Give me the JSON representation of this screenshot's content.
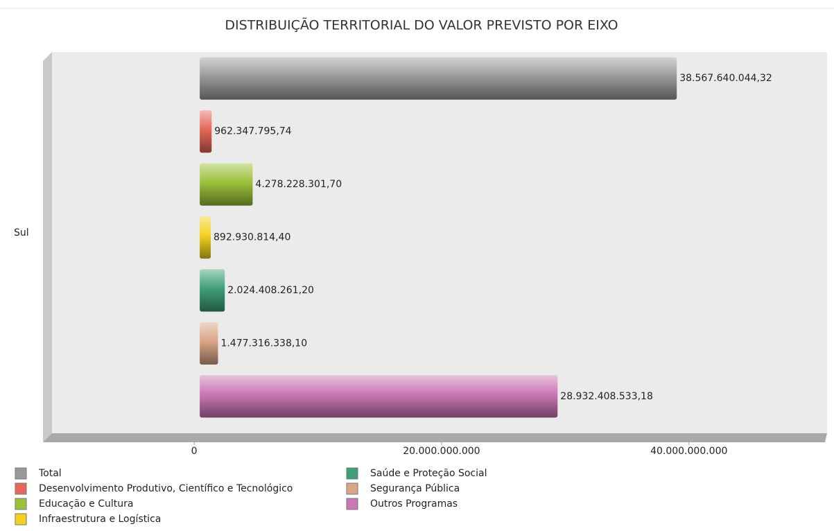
{
  "chart_data": {
    "type": "bar",
    "orientation": "horizontal",
    "title": "DISTRIBUIÇÃO TERRITORIAL DO VALOR PREVISTO POR EIXO",
    "categories": [
      "Sul"
    ],
    "series": [
      {
        "name": "Total",
        "color": "#9a9a9a",
        "values": [
          38567640044.32
        ],
        "value_labels": [
          "38.567.640.044,32"
        ]
      },
      {
        "name": "Desenvolvimento Produtivo, Científico e Tecnológico",
        "color": "#e8665a",
        "values": [
          962347795.74
        ],
        "value_labels": [
          "962.347.795,74"
        ]
      },
      {
        "name": "Educação e Cultura",
        "color": "#9cc13a",
        "values": [
          4278228301.7
        ],
        "value_labels": [
          "4.278.228.301,70"
        ]
      },
      {
        "name": "Infraestrutura e Logística",
        "color": "#f2d21e",
        "values": [
          892930814.4
        ],
        "value_labels": [
          "892.930.814,40"
        ]
      },
      {
        "name": "Saúde e Proteção Social",
        "color": "#3f9f78",
        "values": [
          2024408261.2
        ],
        "value_labels": [
          "2.024.408.261,20"
        ]
      },
      {
        "name": "Segurança Pública",
        "color": "#d9a585",
        "values": [
          1477316338.1
        ],
        "value_labels": [
          "1.477.316.338,10"
        ]
      },
      {
        "name": "Outros Programas",
        "color": "#cc77b5",
        "values": [
          28932408533.18
        ],
        "value_labels": [
          "28.932.408.533,18"
        ]
      }
    ],
    "xlim": [
      -12000000000,
      51000000000
    ],
    "xticks": [
      0,
      {
        "value": 20000000000,
        "label": "20.000.000.000"
      },
      {
        "value": 40000000000,
        "label": "40.000.000.000"
      }
    ],
    "legend": "bottom"
  }
}
